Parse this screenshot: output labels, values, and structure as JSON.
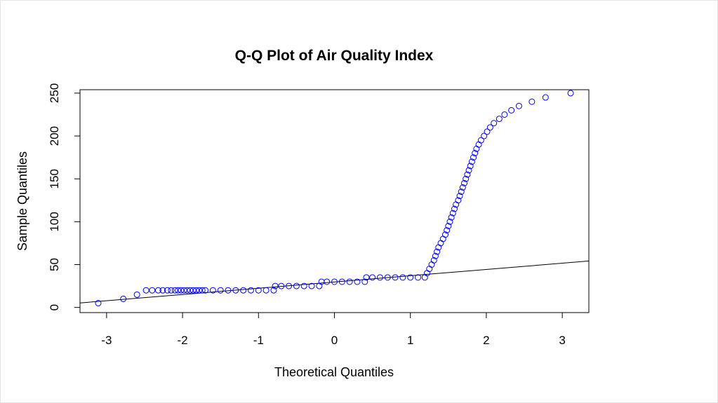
{
  "chart_data": {
    "type": "scatter",
    "title": "Q-Q Plot of Air Quality Index",
    "xlabel": "Theoretical Quantiles",
    "ylabel": "Sample Quantiles",
    "xlim": [
      -3.35,
      3.35
    ],
    "ylim": [
      -6,
      254
    ],
    "x_ticks": [
      -3,
      -2,
      -1,
      0,
      1,
      2,
      3
    ],
    "y_ticks": [
      0,
      50,
      100,
      150,
      200,
      250
    ],
    "grid": false,
    "legend": "none",
    "point_color": "#0000ff",
    "line_color": "#000000",
    "reference_line": {
      "intercept": 29.7,
      "slope": 7.3
    },
    "series": [
      {
        "values": [
          [
            -3.11,
            5
          ],
          [
            -2.78,
            10
          ],
          [
            -2.6,
            15
          ],
          [
            -2.48,
            20
          ],
          [
            -2.4,
            20
          ],
          [
            -2.32,
            20
          ],
          [
            -2.26,
            20
          ],
          [
            -2.2,
            20
          ],
          [
            -2.15,
            20
          ],
          [
            -2.1,
            20
          ],
          [
            -2.06,
            20
          ],
          [
            -2.02,
            20
          ],
          [
            -1.98,
            20
          ],
          [
            -1.94,
            20
          ],
          [
            -1.9,
            20
          ],
          [
            -1.86,
            20
          ],
          [
            -1.82,
            20
          ],
          [
            -1.78,
            20
          ],
          [
            -1.74,
            20
          ],
          [
            -1.7,
            20
          ],
          [
            -1.6,
            20
          ],
          [
            -1.5,
            20
          ],
          [
            -1.4,
            20
          ],
          [
            -1.3,
            20
          ],
          [
            -1.2,
            20
          ],
          [
            -1.1,
            20
          ],
          [
            -1.0,
            20
          ],
          [
            -0.9,
            20
          ],
          [
            -0.8,
            20
          ],
          [
            -0.78,
            25
          ],
          [
            -0.7,
            25
          ],
          [
            -0.6,
            25
          ],
          [
            -0.5,
            25
          ],
          [
            -0.4,
            25
          ],
          [
            -0.3,
            25
          ],
          [
            -0.2,
            25
          ],
          [
            -0.17,
            30
          ],
          [
            -0.1,
            30
          ],
          [
            0.0,
            30
          ],
          [
            0.1,
            30
          ],
          [
            0.2,
            30
          ],
          [
            0.3,
            30
          ],
          [
            0.4,
            30
          ],
          [
            0.42,
            35
          ],
          [
            0.5,
            35
          ],
          [
            0.6,
            35
          ],
          [
            0.7,
            35
          ],
          [
            0.8,
            35
          ],
          [
            0.9,
            35
          ],
          [
            1.0,
            35
          ],
          [
            1.1,
            35
          ],
          [
            1.19,
            35
          ],
          [
            1.22,
            40
          ],
          [
            1.25,
            45
          ],
          [
            1.28,
            50
          ],
          [
            1.31,
            55
          ],
          [
            1.33,
            60
          ],
          [
            1.35,
            65
          ],
          [
            1.37,
            70
          ],
          [
            1.4,
            75
          ],
          [
            1.43,
            80
          ],
          [
            1.46,
            85
          ],
          [
            1.48,
            90
          ],
          [
            1.5,
            95
          ],
          [
            1.52,
            100
          ],
          [
            1.54,
            105
          ],
          [
            1.56,
            110
          ],
          [
            1.58,
            115
          ],
          [
            1.6,
            120
          ],
          [
            1.63,
            125
          ],
          [
            1.65,
            130
          ],
          [
            1.67,
            135
          ],
          [
            1.69,
            140
          ],
          [
            1.71,
            145
          ],
          [
            1.73,
            150
          ],
          [
            1.75,
            155
          ],
          [
            1.77,
            160
          ],
          [
            1.79,
            165
          ],
          [
            1.81,
            170
          ],
          [
            1.83,
            175
          ],
          [
            1.85,
            180
          ],
          [
            1.87,
            185
          ],
          [
            1.9,
            190
          ],
          [
            1.93,
            195
          ],
          [
            1.97,
            200
          ],
          [
            2.01,
            205
          ],
          [
            2.05,
            210
          ],
          [
            2.1,
            215
          ],
          [
            2.17,
            220
          ],
          [
            2.24,
            225
          ],
          [
            2.33,
            230
          ],
          [
            2.43,
            235
          ],
          [
            2.6,
            240
          ],
          [
            2.78,
            245
          ],
          [
            3.11,
            250
          ]
        ]
      }
    ]
  }
}
